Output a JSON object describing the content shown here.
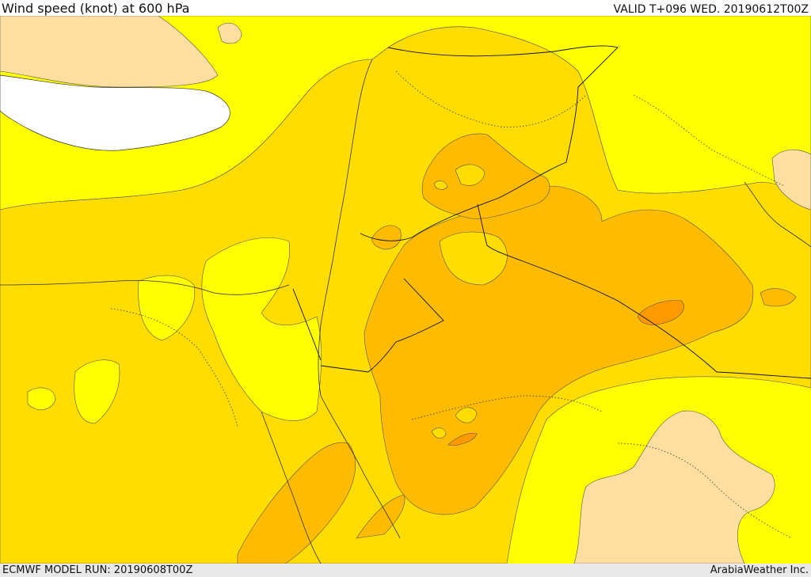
{
  "header": {
    "title": "Wind speed (knot) at 600 hPa",
    "valid": "VALID T+096 WED. 20190612T00Z"
  },
  "footer": {
    "model_run": "ECMWF MODEL RUN: 20190608T00Z",
    "credit": "ArabiaWeather Inc."
  },
  "colors": {
    "water": "#ffffff",
    "band_light_yellow": "#ffff00",
    "band_yellow": "#ffdd00",
    "band_gold": "#ffbb00",
    "band_orange": "#ff9900",
    "band_beige": "#ffdfa0",
    "coastline": "#333333",
    "border": "#111111"
  }
}
